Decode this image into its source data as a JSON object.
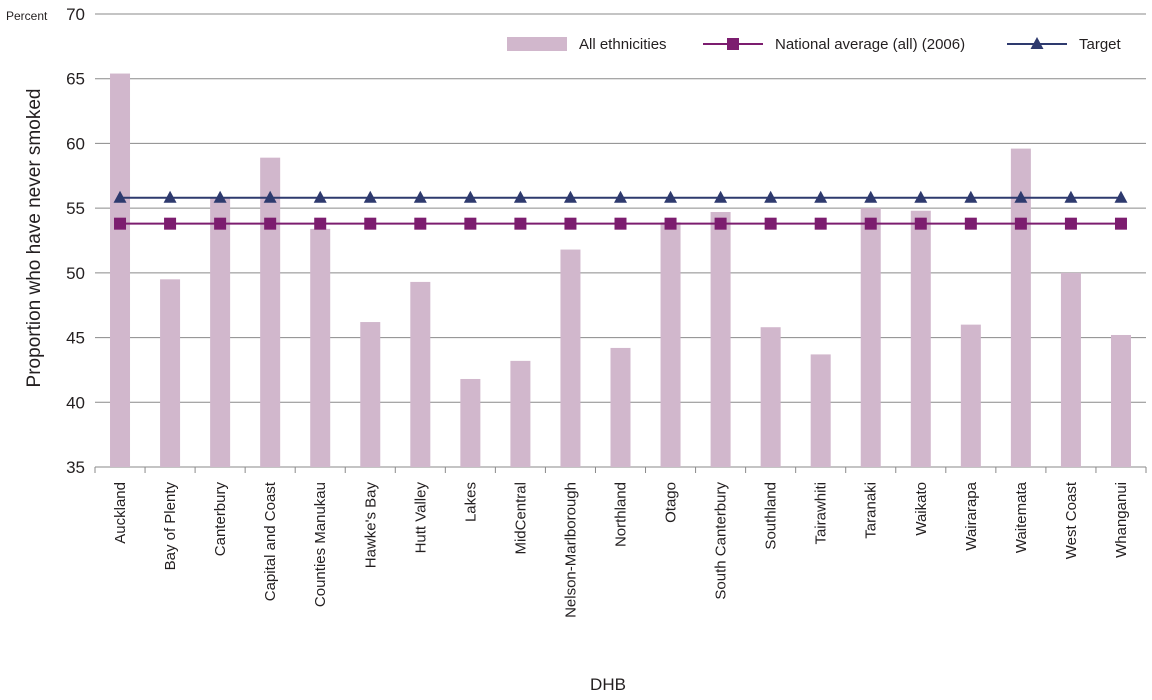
{
  "chart_data": {
    "type": "bar",
    "unit_label": "Percent",
    "ylabel": "Proportion who have never smoked",
    "xlabel": "DHB",
    "ylim": [
      35,
      70
    ],
    "yticks": [
      35,
      40,
      45,
      50,
      55,
      60,
      65,
      70
    ],
    "grid": true,
    "legend_position": "top-right",
    "categories": [
      "Auckland",
      "Bay of Plenty",
      "Canterbury",
      "Capital and Coast",
      "Counties Manukau",
      "Hawke's Bay",
      "Hutt Valley",
      "Lakes",
      "MidCentral",
      "Nelson-Marlborough",
      "Northland",
      "Otago",
      "South Canterbury",
      "Southland",
      "Tairawhiti",
      "Taranaki",
      "Waikato",
      "Wairarapa",
      "Waitemata",
      "West Coast",
      "Whanganui"
    ],
    "series": [
      {
        "name": "All ethnicities",
        "kind": "bar",
        "color": "#d1b7cc",
        "values": [
          65.4,
          49.5,
          55.8,
          58.9,
          53.4,
          46.2,
          49.3,
          41.8,
          43.2,
          51.8,
          44.2,
          53.9,
          54.7,
          45.8,
          43.7,
          55.0,
          54.8,
          46.0,
          59.6,
          50.0,
          45.2
        ]
      },
      {
        "name": "National average (all) (2006)",
        "kind": "line",
        "color": "#7c1d6f",
        "marker": "square",
        "values": [
          53.8,
          53.8,
          53.8,
          53.8,
          53.8,
          53.8,
          53.8,
          53.8,
          53.8,
          53.8,
          53.8,
          53.8,
          53.8,
          53.8,
          53.8,
          53.8,
          53.8,
          53.8,
          53.8,
          53.8,
          53.8
        ]
      },
      {
        "name": "Target",
        "kind": "line",
        "color": "#2e3a6e",
        "marker": "triangle",
        "values": [
          55.8,
          55.8,
          55.8,
          55.8,
          55.8,
          55.8,
          55.8,
          55.8,
          55.8,
          55.8,
          55.8,
          55.8,
          55.8,
          55.8,
          55.8,
          55.8,
          55.8,
          55.8,
          55.8,
          55.8,
          55.8
        ]
      }
    ]
  }
}
